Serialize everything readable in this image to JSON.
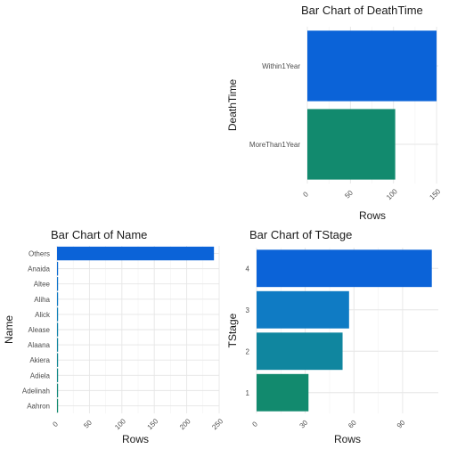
{
  "chart_data": [
    {
      "id": "deathtime",
      "type": "bar",
      "orientation": "horizontal",
      "title": "Bar Chart of DeathTime",
      "xlabel": "Rows",
      "ylabel": "DeathTime",
      "categories": [
        "Within1Year",
        "MoreThan1Year"
      ],
      "values": [
        150,
        102
      ],
      "colors": [
        "#0b63d8",
        "#128a6e"
      ],
      "xticks": [
        0,
        50,
        100,
        150
      ],
      "xlim": [
        0,
        152
      ],
      "tick_rotation": -45,
      "grid": true
    },
    {
      "id": "name",
      "type": "bar",
      "orientation": "horizontal",
      "title": "Bar Chart of Name",
      "xlabel": "Rows",
      "ylabel": "Name",
      "categories": [
        "Others",
        "Anaida",
        "Altee",
        "Aliha",
        "Alick",
        "Alease",
        "Alaana",
        "Akiera",
        "Adiela",
        "Adelinah",
        "Aahron"
      ],
      "values": [
        242,
        1,
        1,
        1,
        1,
        1,
        1,
        1,
        1,
        1,
        1
      ],
      "colors": [
        "#0b63d8",
        "#0d6cd2",
        "#0e74cb",
        "#0f7bc4",
        "#0f81b8",
        "#1084ab",
        "#10869f",
        "#118893",
        "#118987",
        "#128a7a",
        "#128a6e"
      ],
      "xticks": [
        0,
        50,
        100,
        150,
        200,
        250
      ],
      "xlim": [
        0,
        250
      ],
      "tick_rotation": -45,
      "grid": true
    },
    {
      "id": "tstage",
      "type": "bar",
      "orientation": "horizontal",
      "title": "Bar Chart of TStage",
      "xlabel": "Rows",
      "ylabel": "TStage",
      "categories": [
        "4",
        "3",
        "2",
        "1"
      ],
      "values": [
        108,
        57,
        53,
        32
      ],
      "colors": [
        "#0b63d8",
        "#0f7bc4",
        "#10869f",
        "#128a6e"
      ],
      "xticks": [
        0,
        30,
        60,
        90
      ],
      "xlim": [
        0,
        112
      ],
      "tick_rotation": -45,
      "grid": true
    }
  ]
}
